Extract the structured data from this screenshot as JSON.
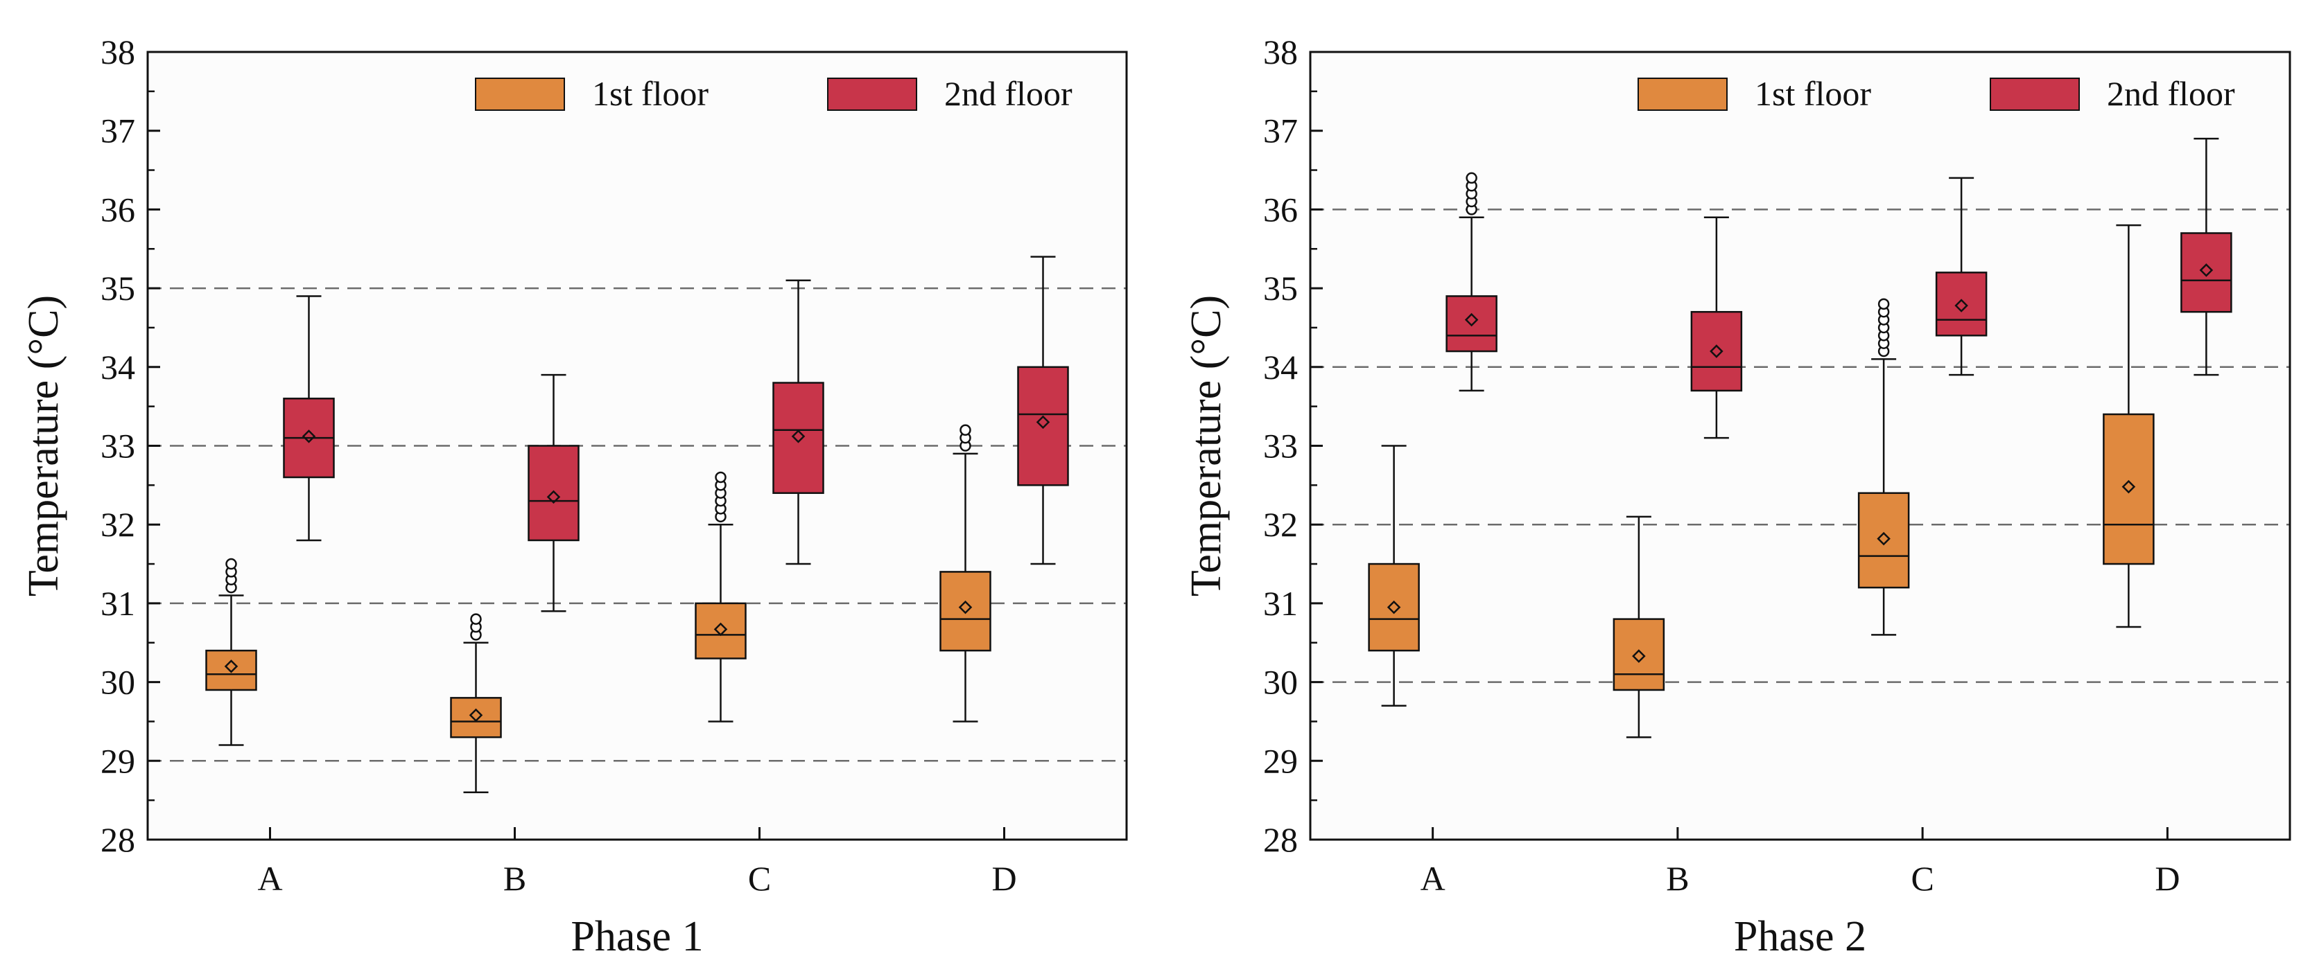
{
  "colors": {
    "first_floor": "#e0893f",
    "second_floor": "#c8354a",
    "frame": "#111111",
    "grid": "#6b6b6b",
    "plot_bg": "#fcfcfc"
  },
  "chart_data": [
    {
      "type": "box",
      "title": "",
      "xlabel": "Phase 1",
      "ylabel": "Temperature (°C)",
      "ylim": [
        28,
        38
      ],
      "yticks": [
        "28",
        "29",
        "30",
        "31",
        "32",
        "33",
        "34",
        "35",
        "36",
        "37",
        "38"
      ],
      "gridlines_y": [
        29,
        31,
        33,
        35
      ],
      "legend_position": "top-right",
      "categories": [
        "A",
        "B",
        "C",
        "D"
      ],
      "series": [
        {
          "name": "1st floor",
          "boxes": [
            {
              "min": 29.2,
              "q1": 29.9,
              "median": 30.1,
              "q3": 30.4,
              "max": 31.1,
              "mean": 30.2,
              "outliers": [
                31.2,
                31.3,
                31.4,
                31.5
              ]
            },
            {
              "min": 28.6,
              "q1": 29.3,
              "median": 29.5,
              "q3": 29.8,
              "max": 30.5,
              "mean": 29.58,
              "outliers": [
                30.6,
                30.7,
                30.8
              ]
            },
            {
              "min": 29.5,
              "q1": 30.3,
              "median": 30.6,
              "q3": 31.0,
              "max": 32.0,
              "mean": 30.67,
              "outliers": [
                32.1,
                32.2,
                32.3,
                32.4,
                32.5,
                32.6
              ]
            },
            {
              "min": 29.5,
              "q1": 30.4,
              "median": 30.8,
              "q3": 31.4,
              "max": 32.9,
              "mean": 30.95,
              "outliers": [
                33.0,
                33.1,
                33.2
              ]
            }
          ]
        },
        {
          "name": "2nd floor",
          "boxes": [
            {
              "min": 31.8,
              "q1": 32.6,
              "median": 33.1,
              "q3": 33.6,
              "max": 34.9,
              "mean": 33.12,
              "outliers": []
            },
            {
              "min": 30.9,
              "q1": 31.8,
              "median": 32.3,
              "q3": 33.0,
              "max": 33.9,
              "mean": 32.35,
              "outliers": []
            },
            {
              "min": 31.5,
              "q1": 32.4,
              "median": 33.2,
              "q3": 33.8,
              "max": 35.1,
              "mean": 33.12,
              "outliers": []
            },
            {
              "min": 31.5,
              "q1": 32.5,
              "median": 33.4,
              "q3": 34.0,
              "max": 35.4,
              "mean": 33.3,
              "outliers": []
            }
          ]
        }
      ]
    },
    {
      "type": "box",
      "title": "",
      "xlabel": "Phase 2",
      "ylabel": "Temperature (°C)",
      "ylim": [
        28,
        38
      ],
      "yticks": [
        "28",
        "29",
        "30",
        "31",
        "32",
        "33",
        "34",
        "35",
        "36",
        "37",
        "38"
      ],
      "gridlines_y": [
        30,
        32,
        34,
        36
      ],
      "legend_position": "top-right",
      "categories": [
        "A",
        "B",
        "C",
        "D"
      ],
      "series": [
        {
          "name": "1st floor",
          "boxes": [
            {
              "min": 29.7,
              "q1": 30.4,
              "median": 30.8,
              "q3": 31.5,
              "max": 33.0,
              "mean": 30.95,
              "outliers": []
            },
            {
              "min": 29.3,
              "q1": 29.9,
              "median": 30.1,
              "q3": 30.8,
              "max": 32.1,
              "mean": 30.33,
              "outliers": []
            },
            {
              "min": 30.6,
              "q1": 31.2,
              "median": 31.6,
              "q3": 32.4,
              "max": 34.1,
              "mean": 31.82,
              "outliers": [
                34.2,
                34.3,
                34.4,
                34.5,
                34.6,
                34.7,
                34.8
              ]
            },
            {
              "min": 30.7,
              "q1": 31.5,
              "median": 32.0,
              "q3": 33.4,
              "max": 35.8,
              "mean": 32.48,
              "outliers": []
            }
          ]
        },
        {
          "name": "2nd floor",
          "boxes": [
            {
              "min": 33.7,
              "q1": 34.2,
              "median": 34.4,
              "q3": 34.9,
              "max": 35.9,
              "mean": 34.6,
              "outliers": [
                36.0,
                36.1,
                36.2,
                36.3,
                36.4
              ]
            },
            {
              "min": 33.1,
              "q1": 33.7,
              "median": 34.0,
              "q3": 34.7,
              "max": 35.9,
              "mean": 34.2,
              "outliers": []
            },
            {
              "min": 33.9,
              "q1": 34.4,
              "median": 34.6,
              "q3": 35.2,
              "max": 36.4,
              "mean": 34.78,
              "outliers": []
            },
            {
              "min": 33.9,
              "q1": 34.7,
              "median": 35.1,
              "q3": 35.7,
              "max": 36.9,
              "mean": 35.23,
              "outliers": []
            }
          ]
        }
      ]
    }
  ]
}
